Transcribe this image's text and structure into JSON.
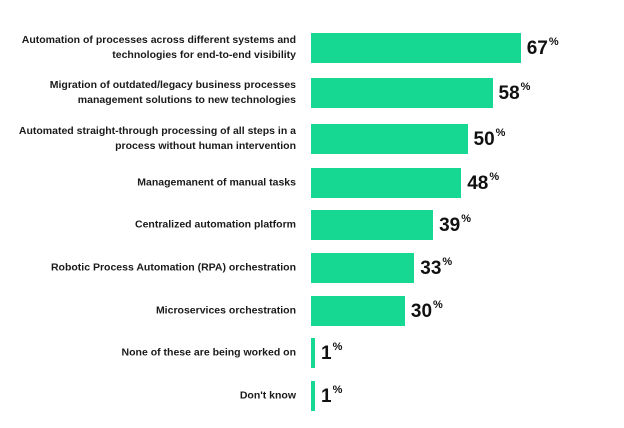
{
  "chart_data": {
    "type": "bar",
    "orientation": "horizontal",
    "categories": [
      "Automation of processes across different systems and technologies for end-to-end visibility",
      "Migration of outdated/legacy business processes management solutions to new technologies",
      "Automated straight-through processing of all steps in a process without human intervention",
      "Managemanent of manual tasks",
      "Centralized automation platform",
      "Robotic Process Automation (RPA) orchestration",
      "Microservices orchestration",
      "None of these are being worked on",
      "Don't know"
    ],
    "values": [
      67,
      58,
      50,
      48,
      39,
      33,
      30,
      1,
      1
    ],
    "value_suffix": "%",
    "title": "",
    "xlabel": "",
    "ylabel": "",
    "xlim": [
      0,
      100
    ],
    "grid": false,
    "legend": "none",
    "bar_color": "#17d892"
  }
}
